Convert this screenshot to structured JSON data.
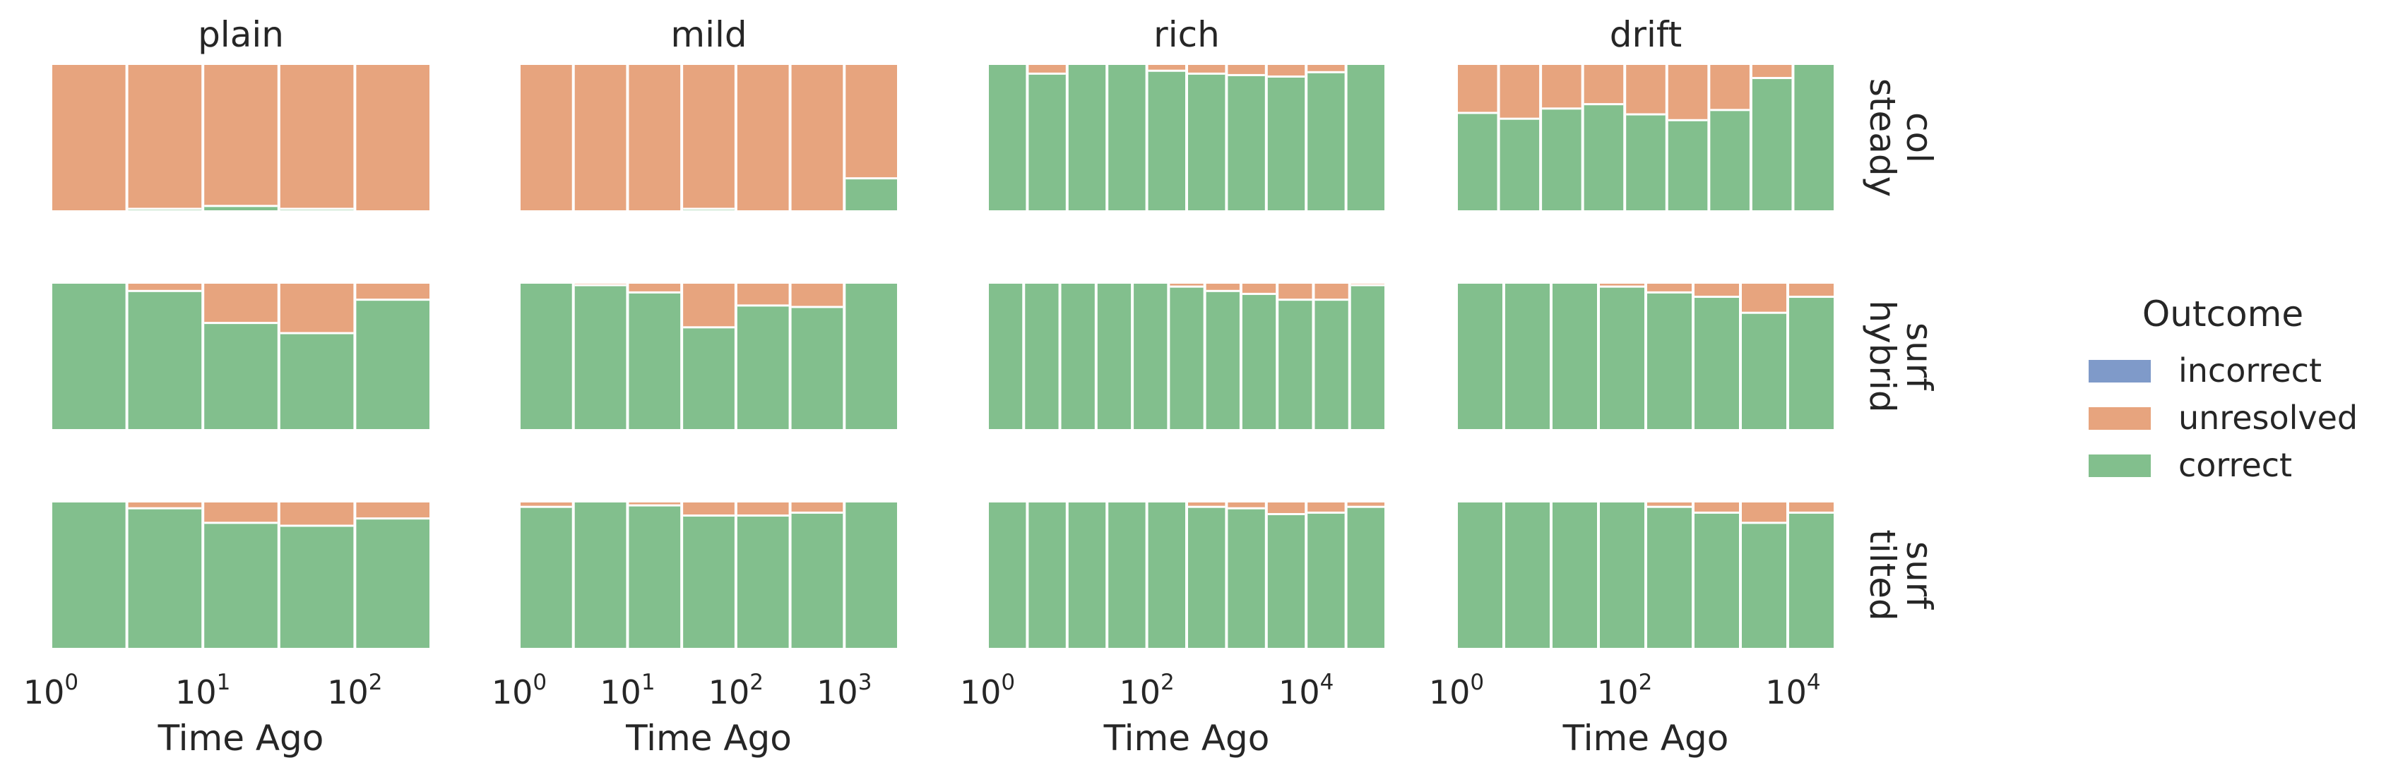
{
  "chart_data": {
    "type": "bar",
    "stacking": "fill",
    "x_scale": "log",
    "grid": false,
    "colors": {
      "incorrect": "#7f9ac9",
      "unresolved": "#e7a47e",
      "correct": "#82bf8d"
    },
    "legend": {
      "title": "Outcome",
      "placement": "right",
      "items": [
        {
          "key": "incorrect",
          "label": "incorrect",
          "color": "#7f9ac9"
        },
        {
          "key": "unresolved",
          "label": "unresolved",
          "color": "#e7a47e"
        },
        {
          "key": "correct",
          "label": "correct",
          "color": "#82bf8d"
        }
      ]
    },
    "columns": [
      {
        "title": "plain",
        "xlabel": "Time Ago",
        "log_xlim": [
          0,
          2.5
        ],
        "ticks": [
          {
            "base": "10",
            "exp": "0",
            "log": 0
          },
          {
            "base": "10",
            "exp": "1",
            "log": 1
          },
          {
            "base": "10",
            "exp": "2",
            "log": 2
          }
        ]
      },
      {
        "title": "mild",
        "xlabel": "Time Ago",
        "log_xlim": [
          0,
          3.5
        ],
        "ticks": [
          {
            "base": "10",
            "exp": "0",
            "log": 0
          },
          {
            "base": "10",
            "exp": "1",
            "log": 1
          },
          {
            "base": "10",
            "exp": "2",
            "log": 2
          },
          {
            "base": "10",
            "exp": "3",
            "log": 3
          }
        ]
      },
      {
        "title": "rich",
        "xlabel": "Time Ago",
        "log_xlim": [
          0,
          5
        ],
        "ticks": [
          {
            "base": "10",
            "exp": "0",
            "log": 0
          },
          {
            "base": "10",
            "exp": "2",
            "log": 2
          },
          {
            "base": "10",
            "exp": "4",
            "log": 4
          }
        ]
      },
      {
        "title": "drift",
        "xlabel": "Time Ago",
        "log_xlim": [
          0,
          4.5
        ],
        "ticks": [
          {
            "base": "10",
            "exp": "0",
            "log": 0
          },
          {
            "base": "10",
            "exp": "2",
            "log": 2
          },
          {
            "base": "10",
            "exp": "4",
            "log": 4
          }
        ]
      }
    ],
    "rows": [
      {
        "label_line1": "col",
        "label_line2": "steady"
      },
      {
        "label_line1": "surf",
        "label_line2": "hybrid"
      },
      {
        "label_line1": "surf",
        "label_line2": "tilted"
      }
    ],
    "panels": [
      [
        {
          "correct": [
            0,
            0.01,
            0.03,
            0.01,
            0
          ]
        },
        {
          "correct": [
            0,
            0,
            0,
            0.01,
            0,
            0,
            0.22
          ]
        },
        {
          "correct": [
            1,
            0.94,
            1,
            1,
            0.96,
            0.94,
            0.93,
            0.92,
            0.95,
            1
          ]
        },
        {
          "correct": [
            0.67,
            0.63,
            0.7,
            0.73,
            0.66,
            0.62,
            0.69,
            0.91,
            1
          ]
        }
      ],
      [
        {
          "correct": [
            1,
            0.95,
            0.73,
            0.66,
            0.89
          ]
        },
        {
          "correct": [
            1,
            0.99,
            0.94,
            0.7,
            0.85,
            0.84,
            1
          ]
        },
        {
          "correct": [
            1,
            1,
            1,
            1,
            1,
            0.98,
            0.95,
            0.93,
            0.89,
            0.89,
            0.99
          ]
        },
        {
          "correct": [
            1,
            1,
            1,
            0.98,
            0.94,
            0.91,
            0.8,
            0.91
          ]
        }
      ],
      [
        {
          "correct": [
            1,
            0.96,
            0.86,
            0.84,
            0.89
          ]
        },
        {
          "correct": [
            0.97,
            1,
            0.98,
            0.91,
            0.91,
            0.93,
            1
          ]
        },
        {
          "correct": [
            1,
            1,
            1,
            1,
            1,
            0.97,
            0.96,
            0.92,
            0.93,
            0.97
          ]
        },
        {
          "correct": [
            1,
            1,
            1,
            1,
            0.97,
            0.93,
            0.86,
            0.93
          ]
        }
      ]
    ]
  }
}
